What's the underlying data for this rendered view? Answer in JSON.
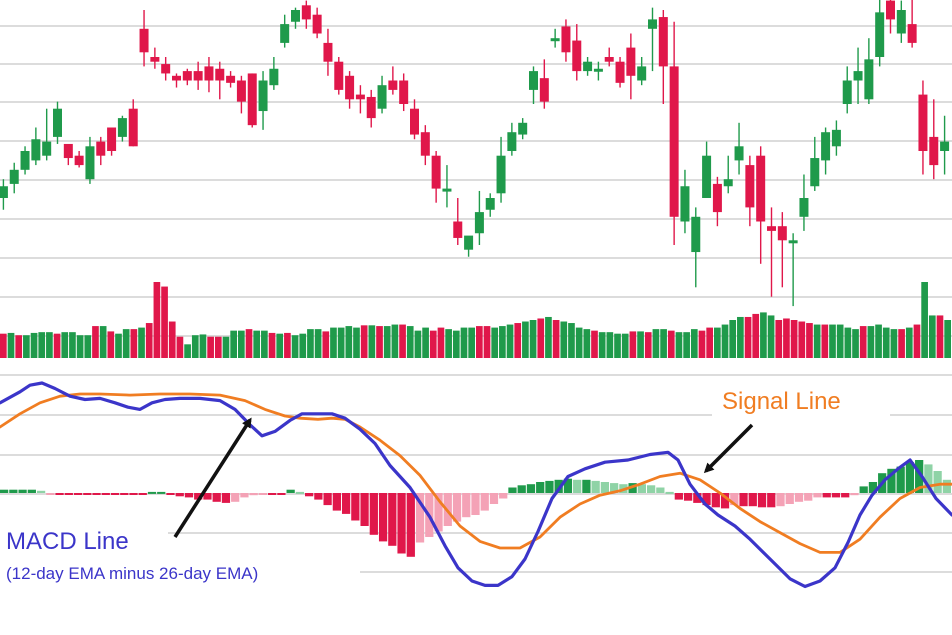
{
  "colors": {
    "up": "#1f9a4b",
    "down": "#e0174a",
    "hist_pos_strong": "#1f9a4b",
    "hist_pos_weak": "#8fd3a6",
    "hist_neg_strong": "#e0174a",
    "hist_neg_weak": "#f4a2b6",
    "macd": "#3b35c9",
    "signal": "#f07d22",
    "grid": "#c8c8c8",
    "arrow": "#111111"
  },
  "annotations": {
    "macd_title": "MACD Line",
    "macd_sub": "(12-day EMA minus 26-day EMA)",
    "signal_title": "Signal Line"
  },
  "chart_data": [
    {
      "type": "candlestick",
      "panel": "price",
      "grid": true,
      "ylim": [
        0,
        100
      ],
      "candles": [
        [
          20,
          25,
          28,
          15
        ],
        [
          26,
          32,
          35,
          22
        ],
        [
          32,
          40,
          42,
          30
        ],
        [
          36,
          45,
          50,
          34
        ],
        [
          38,
          44,
          58,
          36
        ],
        [
          46,
          58,
          61,
          43
        ],
        [
          43,
          37,
          42,
          34
        ],
        [
          38,
          34,
          40,
          33
        ],
        [
          28,
          42,
          46,
          26
        ],
        [
          44,
          38,
          46,
          34
        ],
        [
          50,
          40,
          44,
          38
        ],
        [
          46,
          54,
          55,
          44
        ],
        [
          58,
          42,
          62,
          42
        ],
        [
          92,
          82,
          100,
          76
        ],
        [
          80,
          78,
          84,
          75
        ],
        [
          77,
          73,
          80,
          70
        ],
        [
          72,
          70,
          73,
          67
        ],
        [
          74,
          70,
          75,
          68
        ],
        [
          74,
          70,
          78,
          66
        ],
        [
          76,
          70,
          80,
          65
        ],
        [
          75,
          70,
          78,
          62
        ],
        [
          72,
          69,
          74,
          67
        ],
        [
          70,
          61,
          72,
          56
        ],
        [
          73,
          51,
          73,
          50
        ],
        [
          57,
          70,
          74,
          49
        ],
        [
          68,
          75,
          80,
          66
        ],
        [
          86,
          94,
          98,
          84
        ],
        [
          95,
          100,
          101,
          92
        ],
        [
          102,
          96,
          104,
          92
        ],
        [
          98,
          90,
          101,
          88
        ],
        [
          86,
          78,
          92,
          72
        ],
        [
          78,
          66,
          80,
          64
        ],
        [
          72,
          62,
          74,
          58
        ],
        [
          64,
          62,
          68,
          56
        ],
        [
          63,
          54,
          66,
          50
        ],
        [
          58,
          68,
          72,
          56
        ],
        [
          70,
          66,
          76,
          64
        ],
        [
          70,
          60,
          73,
          57
        ],
        [
          58,
          47,
          62,
          45
        ],
        [
          48,
          38,
          51,
          34
        ],
        [
          38,
          24,
          40,
          18
        ],
        [
          24,
          24,
          34,
          16
        ],
        [
          10,
          3,
          20,
          0
        ],
        [
          -2,
          4,
          1,
          -5
        ],
        [
          5,
          14,
          23,
          0
        ],
        [
          15,
          20,
          22,
          12
        ],
        [
          22,
          38,
          46,
          18
        ],
        [
          40,
          48,
          52,
          38
        ],
        [
          47,
          52,
          54,
          45
        ],
        [
          66,
          74,
          76,
          60
        ],
        [
          71,
          61,
          79,
          58
        ],
        [
          88,
          88,
          92,
          84
        ],
        [
          93,
          82,
          96,
          78
        ],
        [
          87,
          74,
          94,
          70
        ],
        [
          74,
          78,
          80,
          72
        ],
        [
          75,
          75,
          78,
          70
        ],
        [
          80,
          78,
          84,
          76
        ],
        [
          78,
          69,
          80,
          67
        ],
        [
          84,
          72,
          90,
          62
        ],
        [
          70,
          76,
          80,
          68
        ],
        [
          92,
          96,
          101,
          74
        ],
        [
          97,
          76,
          100,
          60
        ],
        [
          76,
          12,
          95,
          0
        ],
        [
          10,
          25,
          32,
          5
        ],
        [
          -3,
          12,
          16,
          -18
        ],
        [
          20,
          38,
          44,
          20
        ],
        [
          26,
          14,
          29,
          8
        ],
        [
          25,
          28,
          38,
          22
        ],
        [
          36,
          42,
          52,
          30
        ],
        [
          34,
          16,
          38,
          8
        ],
        [
          38,
          10,
          42,
          -8
        ],
        [
          8,
          6,
          16,
          -22
        ],
        [
          8,
          2,
          14,
          -18
        ],
        [
          2,
          2,
          5,
          -26
        ],
        [
          12,
          20,
          30,
          6
        ],
        [
          25,
          37,
          46,
          23
        ],
        [
          36,
          48,
          50,
          30
        ],
        [
          42,
          49,
          53,
          38
        ],
        [
          60,
          70,
          76,
          56
        ],
        [
          70,
          74,
          84,
          60
        ],
        [
          62,
          79,
          88,
          60
        ],
        [
          80,
          99,
          105,
          76
        ],
        [
          104,
          96,
          115,
          90
        ],
        [
          90,
          100,
          104,
          86
        ],
        [
          94,
          86,
          108,
          84
        ],
        [
          64,
          40,
          70,
          30
        ],
        [
          46,
          34,
          62,
          28
        ],
        [
          40,
          44,
          55,
          30
        ]
      ]
    },
    {
      "type": "bar",
      "panel": "volume",
      "ylim": [
        0,
        100
      ],
      "values": [
        32,
        33,
        30,
        30,
        33,
        34,
        34,
        32,
        34,
        34,
        30,
        30,
        42,
        42,
        35,
        32,
        38,
        38,
        40,
        46,
        100,
        94,
        48,
        28,
        18,
        30,
        31,
        28,
        28,
        28,
        36,
        36,
        38,
        36,
        36,
        33,
        32,
        33,
        30,
        32,
        38,
        38,
        35,
        40,
        40,
        42,
        40,
        43,
        43,
        42,
        42,
        44,
        44,
        42,
        36,
        40,
        36,
        40,
        38,
        36,
        40,
        40,
        42,
        42,
        40,
        42,
        44,
        46,
        48,
        50,
        52,
        54,
        50,
        48,
        46,
        40,
        38,
        36,
        34,
        34,
        32,
        32,
        35,
        35,
        34,
        38,
        38,
        36,
        34,
        34,
        38,
        36,
        40,
        40,
        44,
        50,
        54,
        54,
        58,
        60,
        56,
        50,
        52,
        50,
        48,
        46,
        44,
        44,
        44,
        44,
        40,
        38,
        42,
        42,
        44,
        40,
        38,
        38,
        40,
        44,
        100,
        56,
        56,
        50
      ]
    },
    {
      "type": "line",
      "panel": "macd",
      "ylim": [
        -100,
        100
      ],
      "series": [
        {
          "name": "MACD Line",
          "x": [
            0,
            20,
            30,
            42,
            55,
            70,
            85,
            100,
            115,
            128,
            140,
            152,
            165,
            180,
            200,
            220,
            235,
            250,
            262,
            275,
            290,
            302,
            318,
            332,
            345,
            360,
            375,
            390,
            410,
            430,
            445,
            458,
            472,
            485,
            498,
            512,
            525,
            538,
            552,
            568,
            585,
            605,
            628,
            650,
            668,
            678,
            690,
            705,
            718,
            735,
            750,
            770,
            790,
            805,
            820,
            835,
            848,
            860,
            872,
            885,
            898,
            910,
            922,
            936,
            952
          ],
          "y": [
            82,
            92,
            98,
            100,
            95,
            88,
            85,
            86,
            82,
            78,
            76,
            82,
            85,
            86,
            86,
            84,
            76,
            62,
            52,
            56,
            66,
            72,
            72,
            72,
            68,
            58,
            45,
            25,
            5,
            -22,
            -48,
            -68,
            -80,
            -84,
            -84,
            -76,
            -60,
            -35,
            -5,
            15,
            22,
            28,
            30,
            35,
            37,
            30,
            8,
            -10,
            -20,
            -30,
            -42,
            -60,
            -78,
            -85,
            -80,
            -68,
            -45,
            -20,
            -2,
            12,
            22,
            30,
            15,
            -5,
            -20
          ]
        },
        {
          "name": "Signal Line",
          "x": [
            0,
            20,
            40,
            60,
            80,
            100,
            130,
            160,
            190,
            220,
            245,
            265,
            285,
            300,
            318,
            332,
            345,
            360,
            380,
            400,
            420,
            440,
            460,
            480,
            500,
            520,
            540,
            560,
            580,
            600,
            620,
            640,
            660,
            680,
            700,
            720,
            740,
            760,
            780,
            800,
            820,
            840,
            860,
            880,
            900,
            920,
            940,
            952
          ],
          "y": [
            60,
            72,
            82,
            88,
            90,
            90,
            89,
            90,
            90,
            89,
            84,
            76,
            70,
            68,
            67,
            68,
            67,
            60,
            48,
            34,
            16,
            -8,
            -30,
            -44,
            -50,
            -50,
            -40,
            -22,
            -10,
            -2,
            2,
            8,
            15,
            18,
            12,
            0,
            -14,
            -26,
            -36,
            -46,
            -54,
            -54,
            -42,
            -22,
            -5,
            5,
            8,
            8
          ]
        }
      ],
      "histogram": [
        3,
        3,
        3,
        3,
        2,
        -1,
        -1,
        -1,
        -1,
        -1,
        -1,
        -1,
        -1,
        -1,
        -1,
        -1,
        1,
        1,
        -1,
        -3,
        -4,
        -6,
        -6,
        -8,
        -9,
        -8,
        -4,
        -2,
        -1,
        -1,
        -1,
        3,
        1,
        -3,
        -6,
        -11,
        -16,
        -19,
        -25,
        -30,
        -38,
        -44,
        -48,
        -55,
        -58,
        -45,
        -40,
        -35,
        -30,
        -26,
        -22,
        -20,
        -16,
        -10,
        -5,
        5,
        7,
        8,
        10,
        11,
        12,
        13,
        12,
        12,
        11,
        10,
        9,
        8,
        9,
        8,
        7,
        5,
        1,
        -6,
        -7,
        -9,
        -11,
        -13,
        -14,
        -11,
        -12,
        -12,
        -13,
        -13,
        -12,
        -10,
        -8,
        -7,
        -4,
        -4,
        -4,
        -4,
        -2,
        6,
        10,
        18,
        22,
        24,
        28,
        30,
        26,
        20,
        12
      ]
    }
  ]
}
